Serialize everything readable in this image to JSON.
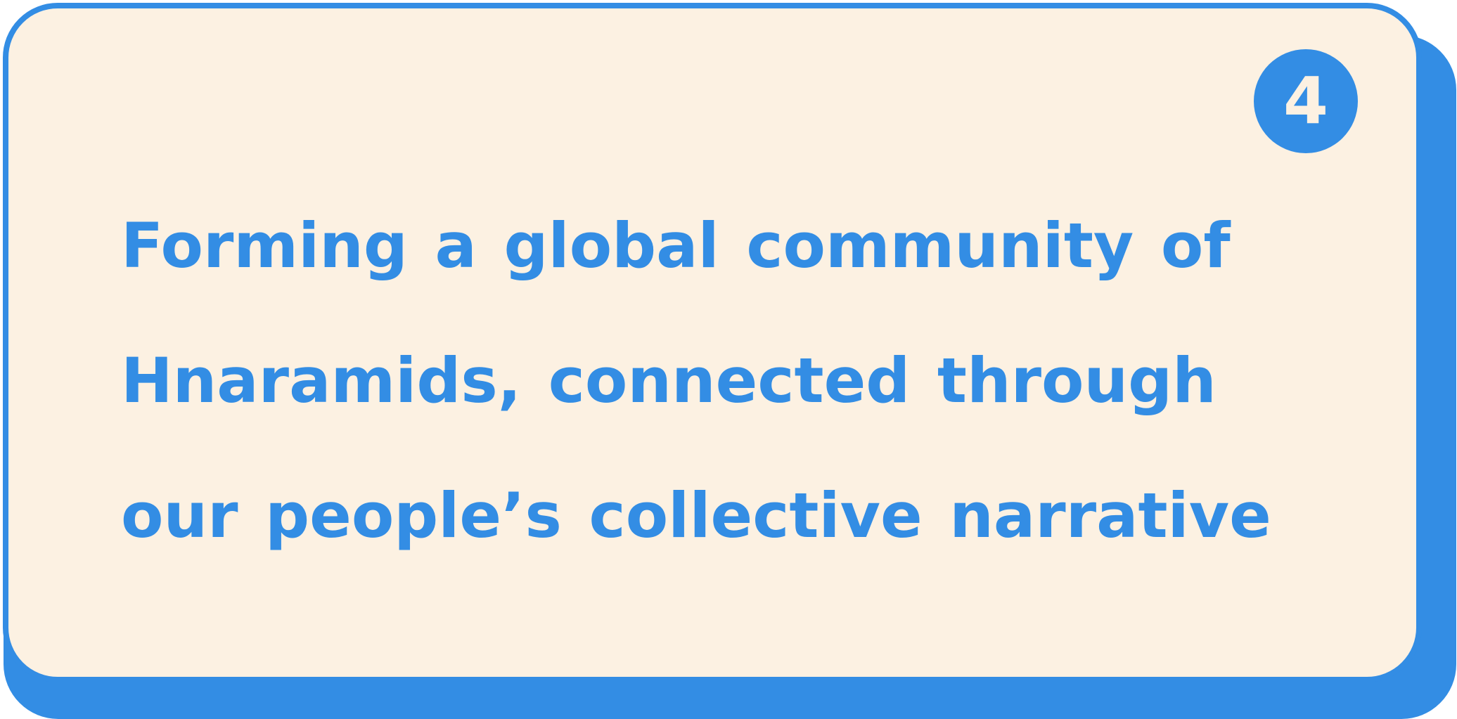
{
  "badge": {
    "number": "4"
  },
  "statement": {
    "lines": [
      "Forming a global community of",
      "Hnaramids, connected through",
      "our people’s collective narrative"
    ]
  },
  "colors": {
    "accent": "#338de4",
    "background": "#fcf1e2"
  }
}
